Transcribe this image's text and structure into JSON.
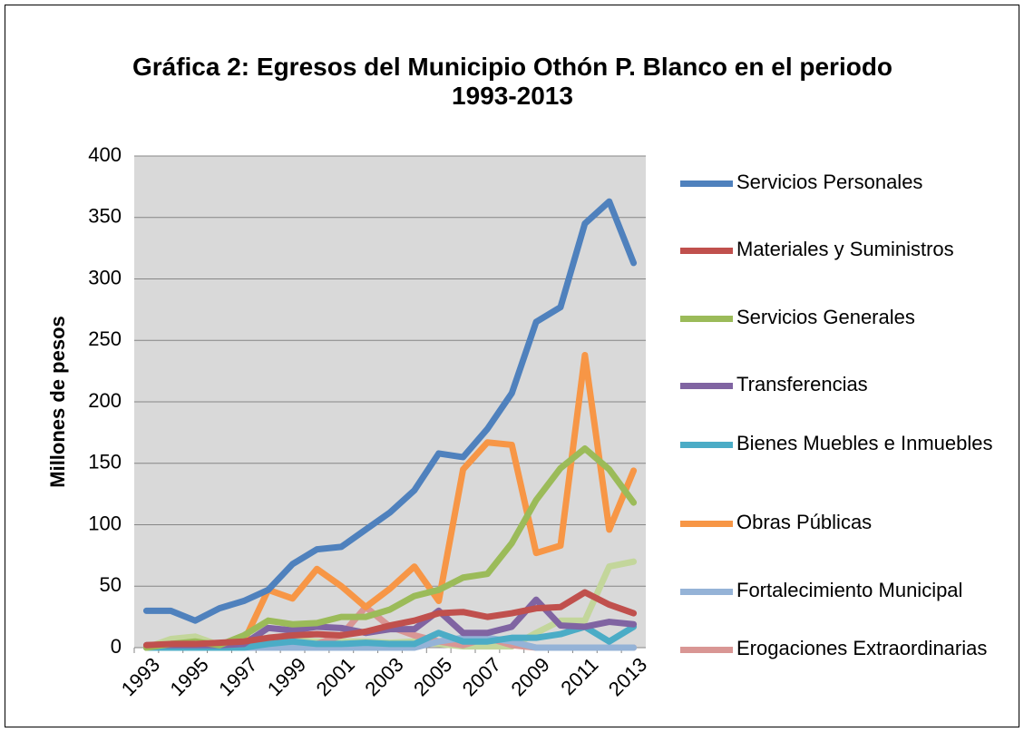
{
  "chart_data": {
    "type": "line",
    "title": "Gráfica 2: Egresos del Municipio Othón P. Blanco en el periodo\n1993-2013",
    "y_label": "Millones de pesos",
    "categories": [
      "1993",
      null,
      "1995",
      null,
      "1997",
      null,
      "1999",
      null,
      "2001",
      null,
      "2003",
      null,
      "2005",
      null,
      "2007",
      null,
      "2009",
      null,
      "2011",
      null,
      "2013"
    ],
    "ylim": [
      0,
      400
    ],
    "yticks": [
      0,
      50,
      100,
      150,
      200,
      250,
      300,
      350,
      400
    ],
    "grid": true,
    "legend": "right",
    "series": [
      {
        "name": "Servicios Personales",
        "color": "#4f81bd",
        "values": [
          30,
          30,
          22,
          32,
          38,
          47,
          68,
          80,
          82,
          96,
          110,
          128,
          158,
          155,
          178,
          207,
          265,
          277,
          345,
          363,
          313
        ]
      },
      {
        "name": "Materiales y Suministros",
        "color": "#c0504d",
        "values": [
          2,
          3,
          3,
          4,
          5,
          8,
          10,
          11,
          10,
          13,
          18,
          22,
          28,
          29,
          25,
          28,
          32,
          33,
          45,
          35,
          28
        ]
      },
      {
        "name": "Servicios Generales",
        "color": "#9bbb59",
        "values": [
          0,
          3,
          5,
          2,
          10,
          22,
          19,
          20,
          25,
          25,
          31,
          42,
          47,
          57,
          60,
          85,
          120,
          146,
          162,
          145,
          118
        ]
      },
      {
        "name": "Transferencias",
        "color": "#8064a2",
        "values": [
          2,
          2,
          2,
          2,
          3,
          16,
          14,
          17,
          16,
          12,
          15,
          15,
          30,
          12,
          12,
          17,
          39,
          18,
          17,
          21,
          19
        ]
      },
      {
        "name": "Bienes Muebles e Inmuebles",
        "color": "#4bacc6",
        "values": [
          0,
          0,
          0,
          0,
          0,
          3,
          5,
          3,
          3,
          4,
          3,
          3,
          12,
          5,
          5,
          8,
          8,
          11,
          17,
          5,
          17
        ]
      },
      {
        "name": "Obras Públicas",
        "color": "#f79646",
        "values": [
          0,
          0,
          0,
          0,
          5,
          47,
          40,
          64,
          50,
          33,
          48,
          66,
          38,
          145,
          167,
          165,
          77,
          83,
          238,
          96,
          144
        ]
      },
      {
        "name": "Fortalecimiento Municipal",
        "color": "#95b3d7",
        "values": [
          0,
          0,
          0,
          0,
          0,
          0,
          0,
          0,
          0,
          0,
          0,
          0,
          5,
          8,
          8,
          5,
          0,
          0,
          0,
          0,
          0
        ]
      },
      {
        "name": "Erogaciones Extraordinarias",
        "color": "#d99694",
        "values": [
          0,
          2,
          2,
          0,
          0,
          0,
          0,
          3,
          10,
          33,
          17,
          10,
          5,
          2,
          8,
          2,
          0,
          0,
          0,
          0,
          0
        ]
      },
      {
        "color": "#c3d69b",
        "values": [
          0,
          7,
          9,
          2,
          2,
          6,
          6,
          5,
          5,
          5,
          4,
          5,
          3,
          1,
          1,
          1,
          12,
          22,
          22,
          66,
          70
        ]
      }
    ]
  }
}
